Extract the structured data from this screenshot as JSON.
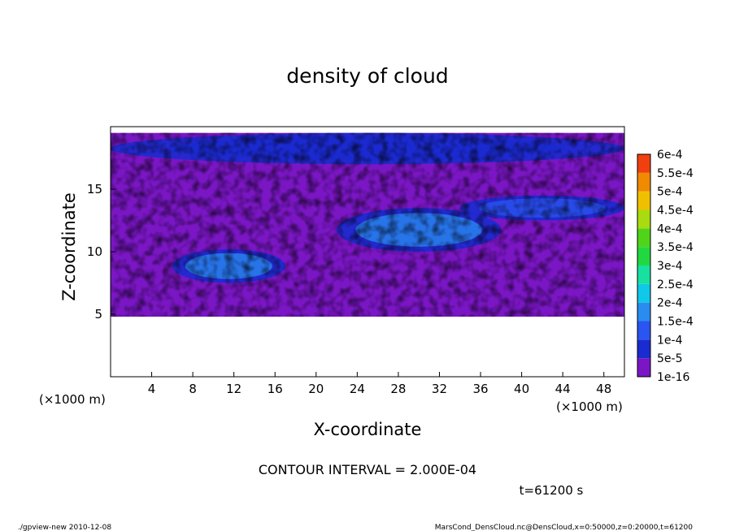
{
  "chart_data": {
    "type": "heatmap",
    "title": "density of cloud",
    "xlabel": "X-coordinate",
    "ylabel": "Z-coordinate",
    "x_unit": "(×1000 m)",
    "x_unit_right": "(×1000 m)",
    "y_unit": "(×1000 m)",
    "xlim": [
      0,
      50
    ],
    "ylim": [
      0,
      20
    ],
    "xticks": [
      4,
      8,
      12,
      16,
      20,
      24,
      28,
      32,
      36,
      40,
      44,
      48
    ],
    "yticks": [
      5,
      10,
      15
    ],
    "colorbar": {
      "levels": [
        "1e-16",
        "5e-5",
        "1e-4",
        "1.5e-4",
        "2e-4",
        "2.5e-4",
        "3e-4",
        "3.5e-4",
        "4e-4",
        "4.5e-4",
        "5e-4",
        "5.5e-4",
        "6e-4"
      ],
      "colors": [
        "#7a16c4",
        "#1a2bd0",
        "#2a55f0",
        "#2a8cf0",
        "#10c8e8",
        "#18e0a0",
        "#22d840",
        "#50d41a",
        "#a8dc10",
        "#f0c000",
        "#f08a00",
        "#f04010",
        "#ff8a8a"
      ]
    },
    "cloud_layer_range_z": [
      4.8,
      19.5
    ],
    "regions": [
      {
        "name": "low cloud blob",
        "x_range": [
          6,
          17
        ],
        "z_range": [
          7.5,
          10.2
        ],
        "level": "1.5e-4"
      },
      {
        "name": "mid cloud band",
        "x_range": [
          22,
          38
        ],
        "z_range": [
          10,
          13.5
        ],
        "level": "1.5e-4"
      },
      {
        "name": "upper right band",
        "x_range": [
          34,
          50
        ],
        "z_range": [
          12.5,
          14.5
        ],
        "level": "1e-4"
      },
      {
        "name": "top band",
        "x_range": [
          0,
          50
        ],
        "z_range": [
          17,
          19.5
        ],
        "level": "5e-5"
      }
    ],
    "footer_left": "./gpview-new   2010-12-08",
    "contour_interval": "CONTOUR INTERVAL = 2.000E-04",
    "time_label": "t=61200 s",
    "footer_right": "MarsCond_DensCloud.nc@DensCloud,x=0:50000,z=0:20000,t=61200"
  }
}
